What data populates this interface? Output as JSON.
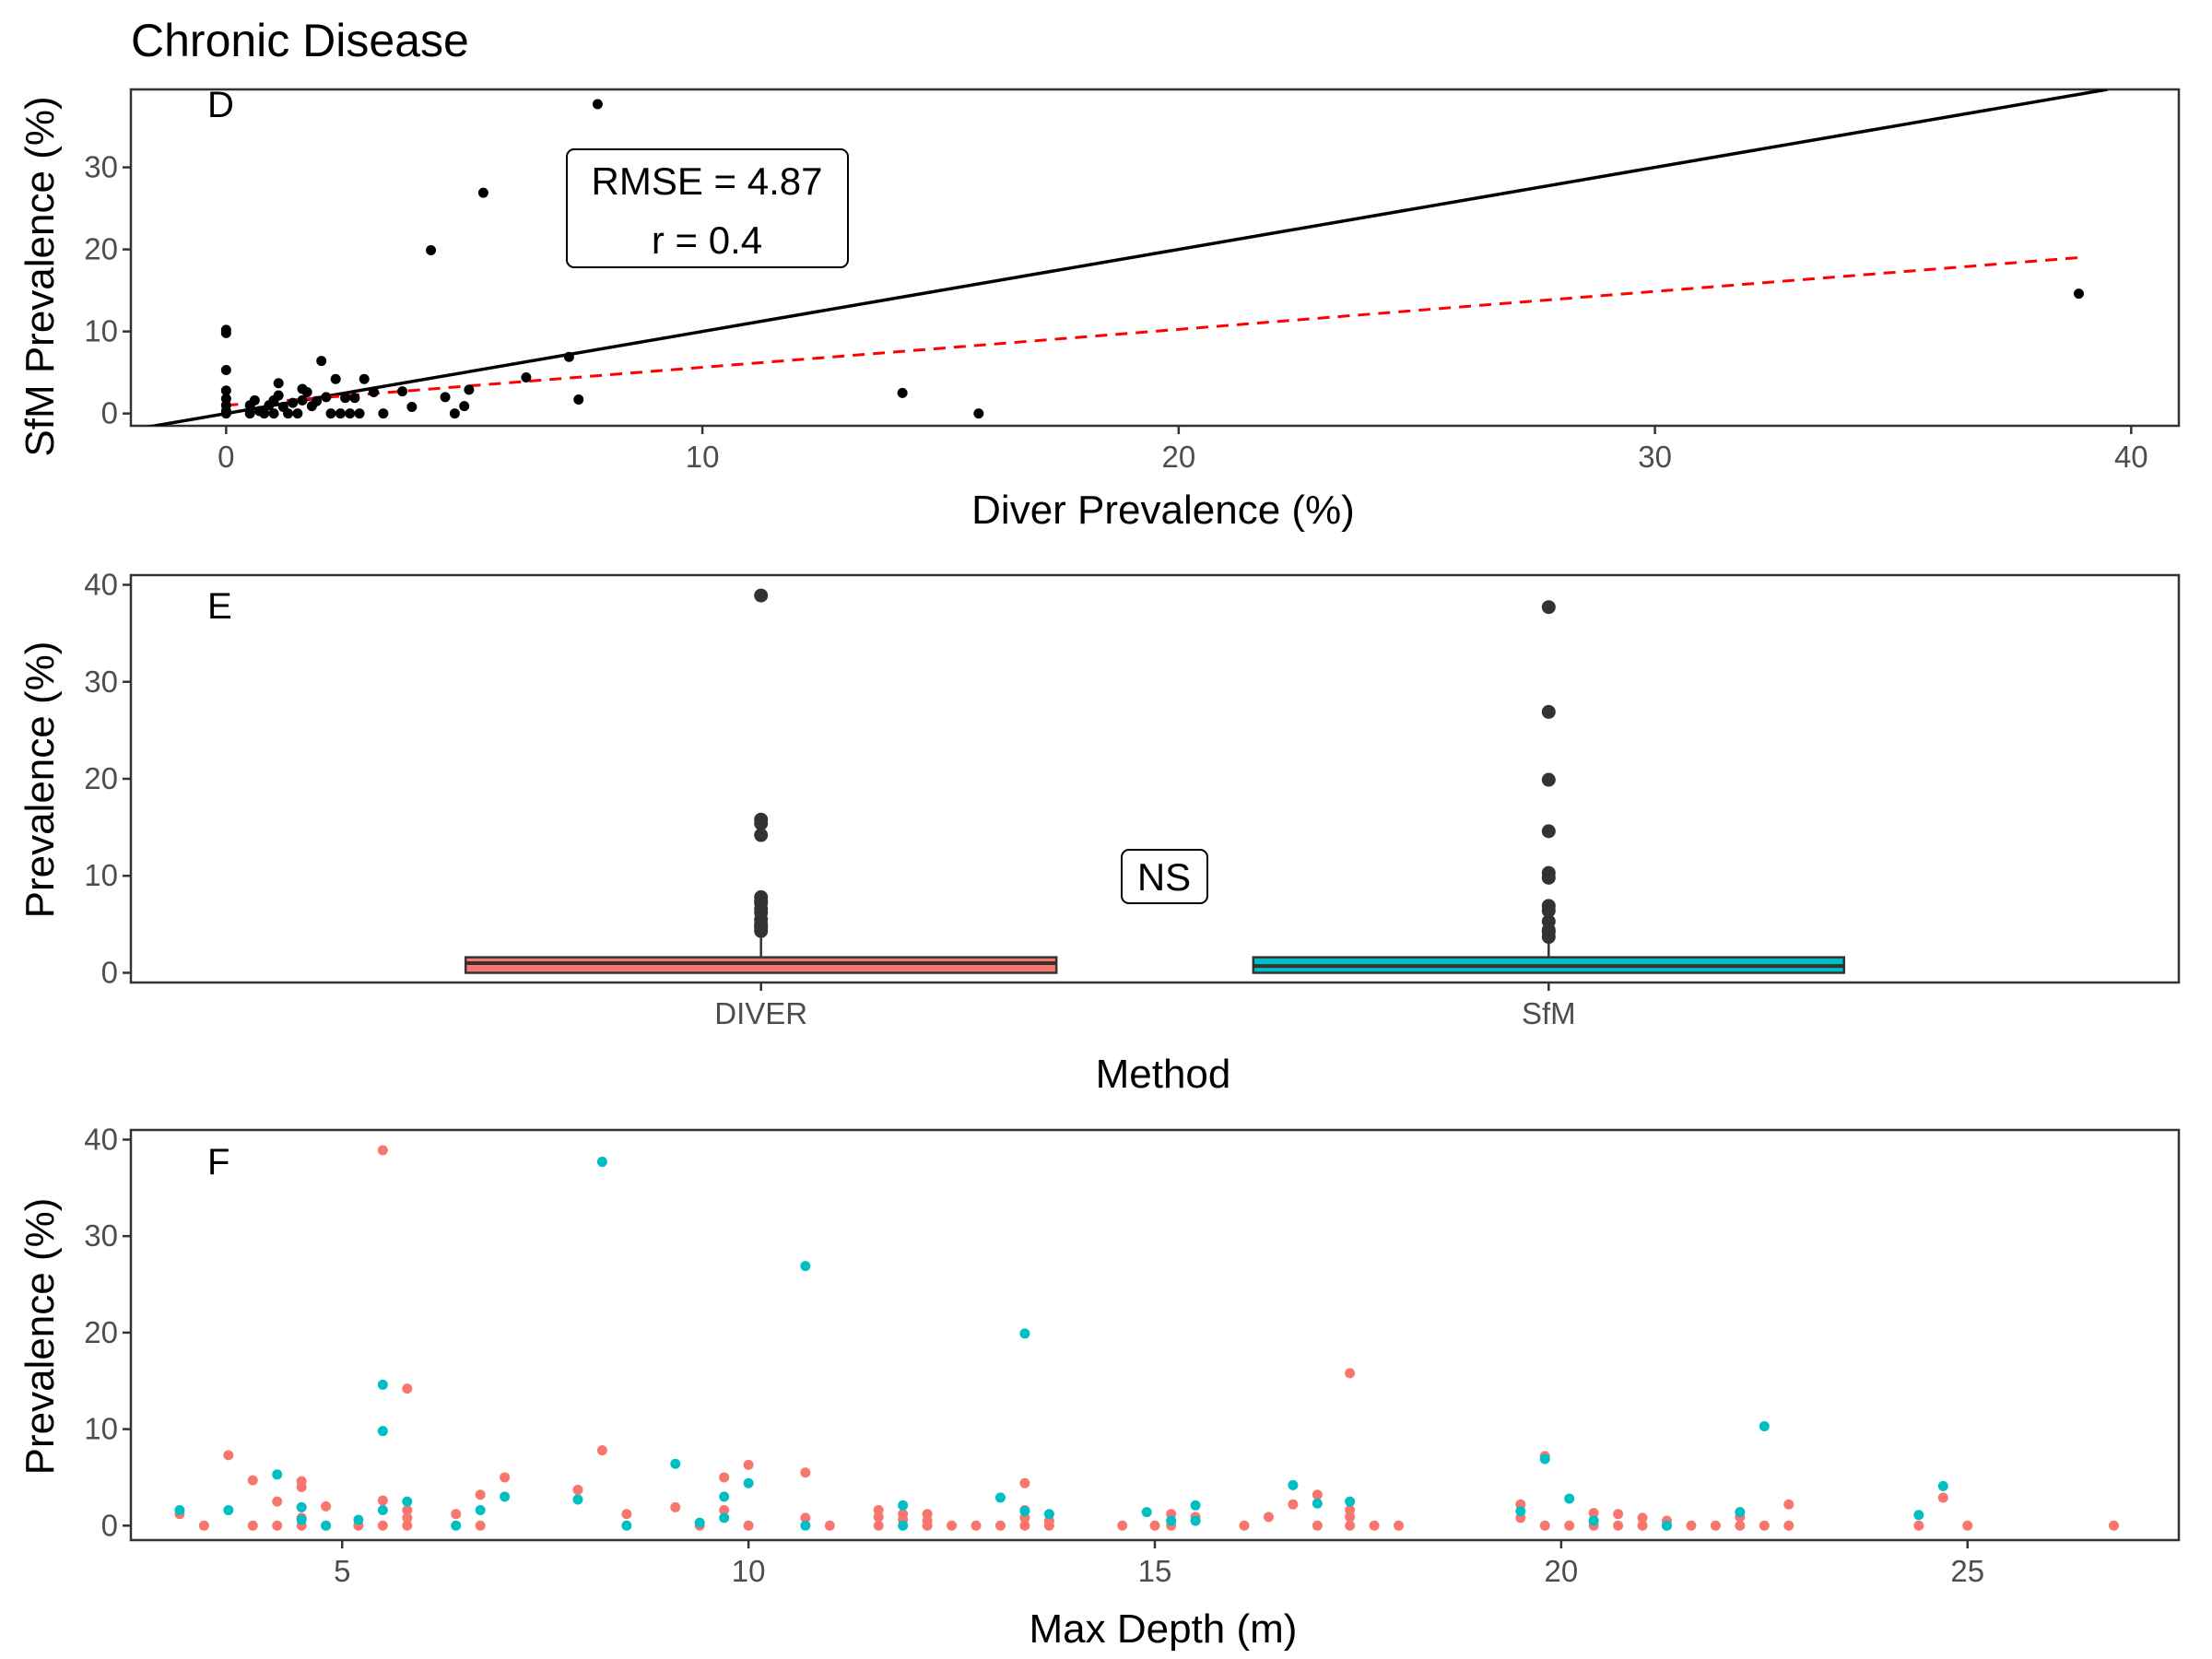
{
  "title": "Chronic Disease",
  "colors": {
    "diver": "#F8766D",
    "sfm": "#00BFC4",
    "points": "#000000",
    "outlier": "#333333",
    "trend": "#FF0000"
  },
  "chart_data": [
    {
      "panel": "D",
      "type": "scatter",
      "xlabel": "Diver Prevalence (%)",
      "ylabel": "SfM Prevalence (%)",
      "xlim": [
        -2,
        41
      ],
      "ylim": [
        -1.5,
        39.5
      ],
      "xticks": [
        0,
        10,
        20,
        30,
        40
      ],
      "yticks": [
        0,
        10,
        20,
        30
      ],
      "annotation": {
        "rmse": "RMSE = 4.87",
        "r": "r = 0.4"
      },
      "identity_line": {
        "from": [
          -2,
          -2
        ],
        "to": [
          39.5,
          39.5
        ]
      },
      "trend_line": {
        "from": [
          0,
          1.0
        ],
        "to": [
          38.9,
          19.0
        ]
      },
      "points": [
        [
          0,
          10.2
        ],
        [
          0,
          9.8
        ],
        [
          0,
          5.3
        ],
        [
          0,
          2.8
        ],
        [
          0,
          1.8
        ],
        [
          0,
          1.0
        ],
        [
          0,
          0.3
        ],
        [
          0,
          0
        ],
        [
          0.5,
          0
        ],
        [
          0.5,
          1.0
        ],
        [
          0.6,
          1.6
        ],
        [
          0.7,
          0.3
        ],
        [
          0.8,
          0
        ],
        [
          0.9,
          1.0
        ],
        [
          1.0,
          0
        ],
        [
          1.0,
          1.6
        ],
        [
          1.1,
          2.2
        ],
        [
          1.1,
          3.7
        ],
        [
          1.2,
          0.8
        ],
        [
          1.3,
          0
        ],
        [
          1.4,
          1.3
        ],
        [
          1.5,
          0
        ],
        [
          1.6,
          1.6
        ],
        [
          1.6,
          3.0
        ],
        [
          1.7,
          2.6
        ],
        [
          1.8,
          0.9
        ],
        [
          1.9,
          1.5
        ],
        [
          2.0,
          6.4
        ],
        [
          2.1,
          2.0
        ],
        [
          2.2,
          0
        ],
        [
          2.3,
          4.2
        ],
        [
          2.4,
          0
        ],
        [
          2.5,
          1.9
        ],
        [
          2.6,
          0
        ],
        [
          2.7,
          1.9
        ],
        [
          2.8,
          0
        ],
        [
          2.9,
          4.2
        ],
        [
          3.1,
          2.6
        ],
        [
          3.3,
          0
        ],
        [
          3.7,
          2.7
        ],
        [
          3.9,
          0.8
        ],
        [
          4.3,
          19.9
        ],
        [
          4.6,
          2.0
        ],
        [
          4.8,
          0
        ],
        [
          5.0,
          0.9
        ],
        [
          5.1,
          2.9
        ],
        [
          5.4,
          26.9
        ],
        [
          6.3,
          4.4
        ],
        [
          7.2,
          6.9
        ],
        [
          7.4,
          1.7
        ],
        [
          7.8,
          37.7
        ],
        [
          14.2,
          2.5
        ],
        [
          15.8,
          0
        ],
        [
          38.9,
          14.6
        ]
      ]
    },
    {
      "panel": "E",
      "type": "box",
      "xlabel": "Method",
      "ylabel": "Prevalence (%)",
      "categories": [
        "DIVER",
        "SfM"
      ],
      "ylim": [
        -1,
        41
      ],
      "yticks": [
        0,
        10,
        20,
        30,
        40
      ],
      "annotation": "NS",
      "series": [
        {
          "name": "DIVER",
          "q1": 0,
          "median": 1.0,
          "q3": 1.6,
          "whisker_low": 0,
          "whisker_high": 3.6,
          "outliers": [
            38.9,
            15.8,
            15.4,
            14.2,
            7.8,
            7.4,
            7.2,
            6.6,
            6.2,
            5.5,
            5.0,
            4.8,
            4.6,
            4.3
          ]
        },
        {
          "name": "SfM",
          "q1": 0,
          "median": 0.7,
          "q3": 1.6,
          "whisker_low": 0,
          "whisker_high": 3.5,
          "outliers": [
            37.7,
            26.9,
            19.9,
            14.6,
            10.3,
            9.8,
            6.9,
            6.4,
            5.3,
            4.4,
            4.2,
            3.7
          ]
        }
      ]
    },
    {
      "panel": "F",
      "type": "scatter",
      "xlabel": "Max Depth (m)",
      "ylabel": "Prevalence (%)",
      "xlim": [
        2.4,
        27.6
      ],
      "ylim": [
        -1.5,
        41
      ],
      "xticks": [
        5,
        10,
        15,
        20,
        25
      ],
      "yticks": [
        0,
        10,
        20,
        30,
        40
      ],
      "series": [
        {
          "name": "DIVER",
          "points": [
            [
              3.0,
              1.2
            ],
            [
              3.3,
              0
            ],
            [
              3.6,
              7.3
            ],
            [
              3.9,
              4.7
            ],
            [
              3.9,
              0
            ],
            [
              4.2,
              0
            ],
            [
              4.2,
              2.5
            ],
            [
              4.5,
              4.6
            ],
            [
              4.5,
              4.0
            ],
            [
              4.5,
              1.9
            ],
            [
              4.5,
              0.8
            ],
            [
              4.5,
              0
            ],
            [
              4.8,
              2.0
            ],
            [
              4.8,
              0
            ],
            [
              5.2,
              0
            ],
            [
              5.5,
              38.9
            ],
            [
              5.5,
              2.6
            ],
            [
              5.5,
              0
            ],
            [
              5.8,
              14.2
            ],
            [
              5.8,
              1.6
            ],
            [
              5.8,
              0.8
            ],
            [
              5.8,
              0
            ],
            [
              6.4,
              1.2
            ],
            [
              6.7,
              3.2
            ],
            [
              6.7,
              0
            ],
            [
              7.0,
              5.0
            ],
            [
              7.9,
              3.7
            ],
            [
              8.2,
              7.8
            ],
            [
              8.5,
              1.2
            ],
            [
              9.1,
              1.9
            ],
            [
              9.4,
              0
            ],
            [
              9.7,
              5.0
            ],
            [
              9.7,
              1.6
            ],
            [
              10.0,
              6.3
            ],
            [
              10.0,
              0
            ],
            [
              10.7,
              5.5
            ],
            [
              10.7,
              0.8
            ],
            [
              11.0,
              0
            ],
            [
              11.6,
              1.6
            ],
            [
              11.6,
              0.9
            ],
            [
              11.6,
              0
            ],
            [
              11.9,
              1.2
            ],
            [
              11.9,
              0.6
            ],
            [
              12.2,
              1.2
            ],
            [
              12.2,
              0.5
            ],
            [
              12.2,
              0
            ],
            [
              12.5,
              0
            ],
            [
              12.8,
              0
            ],
            [
              13.1,
              0
            ],
            [
              13.4,
              4.4
            ],
            [
              13.4,
              1.6
            ],
            [
              13.4,
              0.8
            ],
            [
              13.4,
              0
            ],
            [
              13.7,
              0.5
            ],
            [
              13.7,
              0
            ],
            [
              14.6,
              0
            ],
            [
              15.0,
              0
            ],
            [
              15.2,
              1.2
            ],
            [
              15.2,
              0
            ],
            [
              15.5,
              0.9
            ],
            [
              16.1,
              0
            ],
            [
              16.4,
              0.9
            ],
            [
              16.7,
              2.2
            ],
            [
              17.0,
              3.2
            ],
            [
              17.0,
              0
            ],
            [
              17.4,
              15.8
            ],
            [
              17.4,
              1.6
            ],
            [
              17.4,
              0.9
            ],
            [
              17.4,
              0
            ],
            [
              17.7,
              0
            ],
            [
              18.0,
              0
            ],
            [
              19.5,
              2.2
            ],
            [
              19.5,
              0.8
            ],
            [
              19.8,
              7.2
            ],
            [
              19.8,
              0
            ],
            [
              20.1,
              0
            ],
            [
              20.4,
              1.3
            ],
            [
              20.4,
              0.5
            ],
            [
              20.4,
              0
            ],
            [
              20.7,
              1.2
            ],
            [
              20.7,
              0
            ],
            [
              21.0,
              0.8
            ],
            [
              21.0,
              0
            ],
            [
              21.3,
              0.5
            ],
            [
              21.3,
              0
            ],
            [
              21.6,
              0
            ],
            [
              21.9,
              0
            ],
            [
              22.2,
              0.9
            ],
            [
              22.2,
              0
            ],
            [
              22.5,
              0
            ],
            [
              22.8,
              2.2
            ],
            [
              22.8,
              0
            ],
            [
              24.4,
              0
            ],
            [
              24.7,
              2.9
            ],
            [
              25.0,
              0
            ],
            [
              26.8,
              0
            ]
          ]
        },
        {
          "name": "SfM",
          "points": [
            [
              3.0,
              1.6
            ],
            [
              3.6,
              1.6
            ],
            [
              4.2,
              5.3
            ],
            [
              4.5,
              1.9
            ],
            [
              4.5,
              0.6
            ],
            [
              4.8,
              0
            ],
            [
              5.2,
              0.6
            ],
            [
              5.5,
              14.6
            ],
            [
              5.5,
              9.8
            ],
            [
              5.5,
              1.6
            ],
            [
              5.8,
              2.5
            ],
            [
              6.4,
              0
            ],
            [
              6.7,
              1.6
            ],
            [
              7.0,
              3.0
            ],
            [
              7.9,
              2.7
            ],
            [
              8.2,
              37.7
            ],
            [
              8.5,
              0
            ],
            [
              9.1,
              6.4
            ],
            [
              9.4,
              0.3
            ],
            [
              9.7,
              3.0
            ],
            [
              9.7,
              0.8
            ],
            [
              10.0,
              4.4
            ],
            [
              10.7,
              26.9
            ],
            [
              10.7,
              0
            ],
            [
              11.9,
              2.1
            ],
            [
              11.9,
              0
            ],
            [
              13.1,
              2.9
            ],
            [
              13.4,
              19.9
            ],
            [
              13.4,
              1.5
            ],
            [
              13.7,
              1.2
            ],
            [
              14.9,
              1.4
            ],
            [
              15.2,
              0.5
            ],
            [
              15.5,
              2.1
            ],
            [
              15.5,
              0.5
            ],
            [
              16.7,
              4.2
            ],
            [
              17.0,
              2.3
            ],
            [
              17.4,
              2.5
            ],
            [
              19.5,
              1.5
            ],
            [
              19.8,
              6.9
            ],
            [
              20.1,
              2.8
            ],
            [
              20.4,
              0.5
            ],
            [
              21.3,
              0
            ],
            [
              22.2,
              1.4
            ],
            [
              22.5,
              10.3
            ],
            [
              24.4,
              1.1
            ],
            [
              24.7,
              4.1
            ]
          ]
        }
      ]
    }
  ]
}
